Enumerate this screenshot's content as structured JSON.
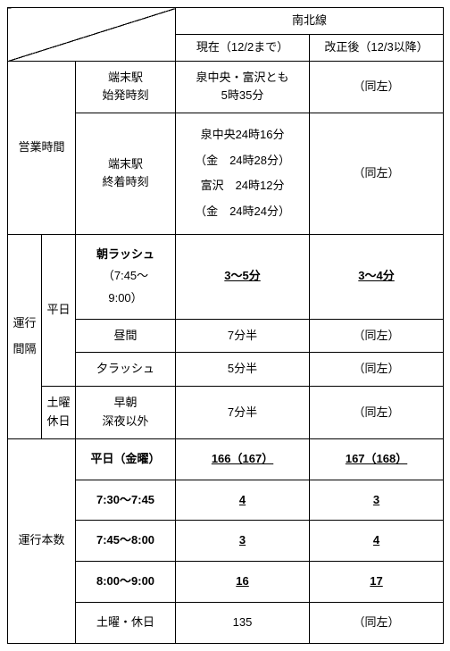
{
  "header": {
    "line_name": "南北線",
    "col_current": "現在（12/2まで）",
    "col_revised": "改正後（12/3以降）"
  },
  "hours": {
    "section_label": "営業時間",
    "first_label_l1": "端末駅",
    "first_label_l2": "始発時刻",
    "first_current_l1": "泉中央・富沢とも",
    "first_current_l2": "5時35分",
    "first_revised": "（同左）",
    "last_label_l1": "端末駅",
    "last_label_l2": "終着時刻",
    "last_current_l1": "泉中央24時16分",
    "last_current_l2": "（金　24時28分）",
    "last_current_l3": "富沢　24時12分",
    "last_current_l4": "（金　24時24分）",
    "last_revised": "（同左）"
  },
  "interval": {
    "section_label": "運行間隔",
    "weekday_label": "平日",
    "rush_label_l1": "朝ラッシュ",
    "rush_label_l2": "（7:45～",
    "rush_label_l3": "9:00）",
    "rush_current": "3～5分",
    "rush_revised": "3～4分",
    "day_label": "昼間",
    "day_current": "7分半",
    "day_revised": "（同左）",
    "eve_label": "夕ラッシュ",
    "eve_current": "5分半",
    "eve_revised": "（同左）",
    "sat_label_l1": "土曜",
    "sat_label_l2": "休日",
    "sat_time_l1": "早朝",
    "sat_time_l2": "深夜以外",
    "sat_current": "7分半",
    "sat_revised": "（同左）"
  },
  "count": {
    "section_label": "運行本数",
    "r1_label": "平日（金曜）",
    "r1_current": "166（167）",
    "r1_revised": "167（168）",
    "r2_label": "7:30～7:45",
    "r2_current": "4",
    "r2_revised": "3",
    "r3_label": "7:45～8:00",
    "r3_current": "3",
    "r3_revised": "4",
    "r4_label": "8:00～9:00",
    "r4_current": "16",
    "r4_revised": "17",
    "r5_label": "土曜・休日",
    "r5_current": "135",
    "r5_revised": "（同左）"
  }
}
